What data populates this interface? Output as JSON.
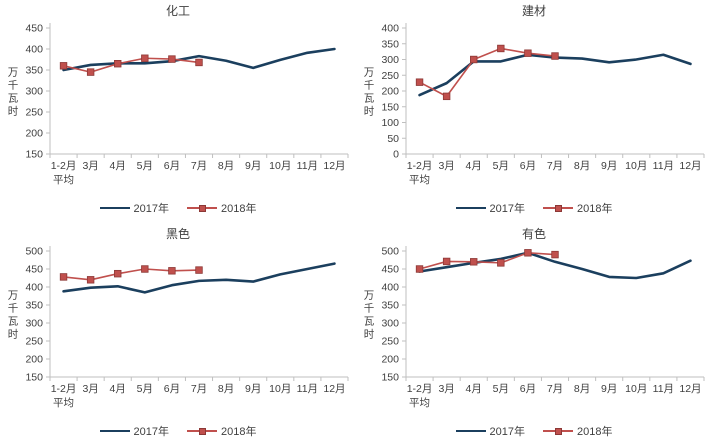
{
  "page": {
    "background": "#ffffff"
  },
  "colors": {
    "axis": "#bfbfbf",
    "tick_text": "#3f3f3f",
    "series_2017": "#1b3f5e",
    "series_2018": "#c0504d",
    "marker_border": "#8c3836"
  },
  "chart_data": [
    {
      "type": "line",
      "title": "化工",
      "ylabel": "万千瓦时",
      "ylim": [
        150,
        450
      ],
      "ytick_step": 50,
      "grid": false,
      "legend_position": "bottom",
      "categories": [
        "1-2月\n平均",
        "3月",
        "4月",
        "5月",
        "6月",
        "7月",
        "8月",
        "9月",
        "10月",
        "11月",
        "12月"
      ],
      "series": [
        {
          "name": "2017年",
          "color": "#1b3f5e",
          "marker": false,
          "values": [
            350,
            362,
            366,
            366,
            371,
            383,
            372,
            355,
            374,
            391,
            400
          ]
        },
        {
          "name": "2018年",
          "color": "#c0504d",
          "marker": true,
          "values": [
            360,
            345,
            365,
            378,
            376,
            368
          ]
        }
      ]
    },
    {
      "type": "line",
      "title": "建材",
      "ylabel": "万千瓦时",
      "ylim": [
        0,
        400
      ],
      "ytick_step": 50,
      "grid": false,
      "legend_position": "bottom",
      "categories": [
        "1-2月\n平均",
        "3月",
        "4月",
        "5月",
        "6月",
        "7月",
        "8月",
        "9月",
        "10月",
        "11月",
        "12月"
      ],
      "series": [
        {
          "name": "2017年",
          "color": "#1b3f5e",
          "marker": false,
          "values": [
            187,
            225,
            294,
            294,
            315,
            306,
            303,
            291,
            300,
            315,
            286
          ]
        },
        {
          "name": "2018年",
          "color": "#c0504d",
          "marker": true,
          "values": [
            228,
            183,
            300,
            335,
            320,
            311
          ]
        }
      ]
    },
    {
      "type": "line",
      "title": "黑色",
      "ylabel": "万千瓦时",
      "ylim": [
        150,
        500
      ],
      "ytick_step": 50,
      "grid": false,
      "legend_position": "bottom",
      "categories": [
        "1-2月\n平均",
        "3月",
        "4月",
        "5月",
        "6月",
        "7月",
        "8月",
        "9月",
        "10月",
        "11月",
        "12月"
      ],
      "series": [
        {
          "name": "2017年",
          "color": "#1b3f5e",
          "marker": false,
          "values": [
            388,
            398,
            402,
            385,
            405,
            417,
            420,
            415,
            435,
            450,
            465
          ]
        },
        {
          "name": "2018年",
          "color": "#c0504d",
          "marker": true,
          "values": [
            428,
            420,
            437,
            450,
            445,
            447
          ]
        }
      ]
    },
    {
      "type": "line",
      "title": "有色",
      "ylabel": "万千瓦时",
      "ylim": [
        150,
        500
      ],
      "ytick_step": 50,
      "grid": false,
      "legend_position": "bottom",
      "categories": [
        "1-2月\n平均",
        "3月",
        "4月",
        "5月",
        "6月",
        "7月",
        "8月",
        "9月",
        "10月",
        "11月",
        "12月"
      ],
      "series": [
        {
          "name": "2017年",
          "color": "#1b3f5e",
          "marker": false,
          "values": [
            443,
            455,
            467,
            478,
            495,
            470,
            450,
            428,
            425,
            438,
            473
          ]
        },
        {
          "name": "2018年",
          "color": "#c0504d",
          "marker": true,
          "values": [
            450,
            471,
            470,
            467,
            495,
            490
          ]
        }
      ]
    }
  ]
}
